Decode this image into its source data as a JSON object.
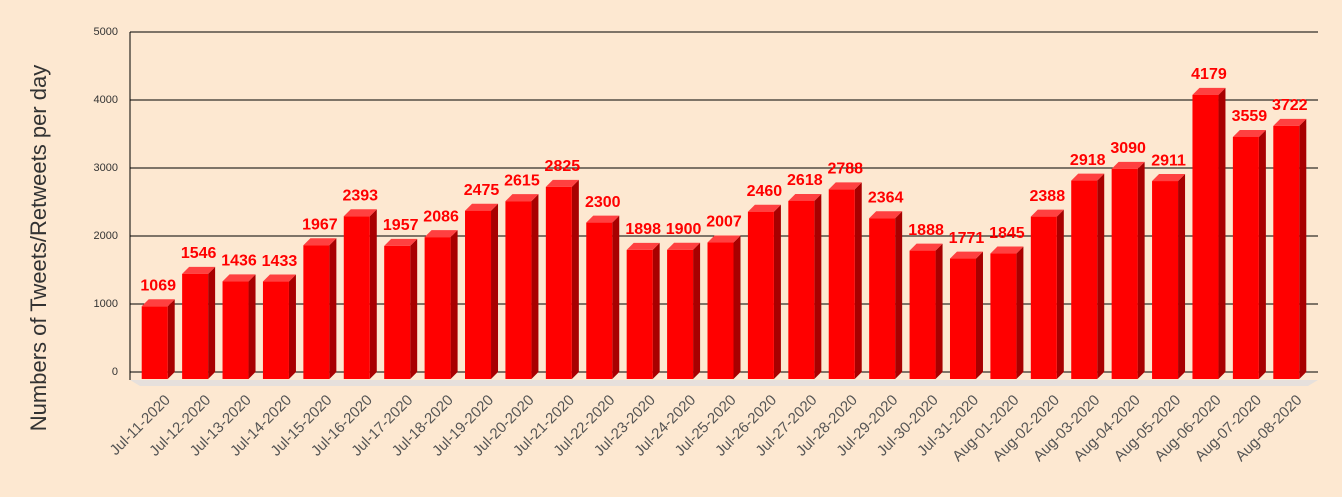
{
  "chart_data": {
    "type": "bar3d",
    "y_label": "Numbers of Tweets/Retweets per day",
    "categories": [
      "Jul-11-2020",
      "Jul-12-2020",
      "Jul-13-2020",
      "Jul-14-2020",
      "Jul-15-2020",
      "Jul-16-2020",
      "Jul-17-2020",
      "Jul-18-2020",
      "Jul-19-2020",
      "Jul-20-2020",
      "Jul-21-2020",
      "Jul-22-2020",
      "Jul-23-2020",
      "Jul-24-2020",
      "Jul-25-2020",
      "Jul-26-2020",
      "Jul-27-2020",
      "Jul-28-2020",
      "Jul-29-2020",
      "Jul-30-2020",
      "Jul-31-2020",
      "Aug-01-2020",
      "Aug-02-2020",
      "Aug-03-2020",
      "Aug-04-2020",
      "Aug-05-2020",
      "Aug-06-2020",
      "Aug-07-2020",
      "Aug-08-2020"
    ],
    "values": [
      1069,
      1546,
      1436,
      1433,
      1967,
      2393,
      1957,
      2086,
      2475,
      2615,
      2825,
      2300,
      1898,
      1900,
      2007,
      2460,
      2618,
      2788,
      2364,
      1888,
      1771,
      1845,
      2388,
      2918,
      3090,
      2911,
      4179,
      3559,
      3722
    ],
    "color": "#ff0000",
    "ylim": [
      0,
      5000
    ],
    "yticks": [
      0,
      1000,
      2000,
      3000,
      4000,
      5000
    ],
    "grid": true
  }
}
